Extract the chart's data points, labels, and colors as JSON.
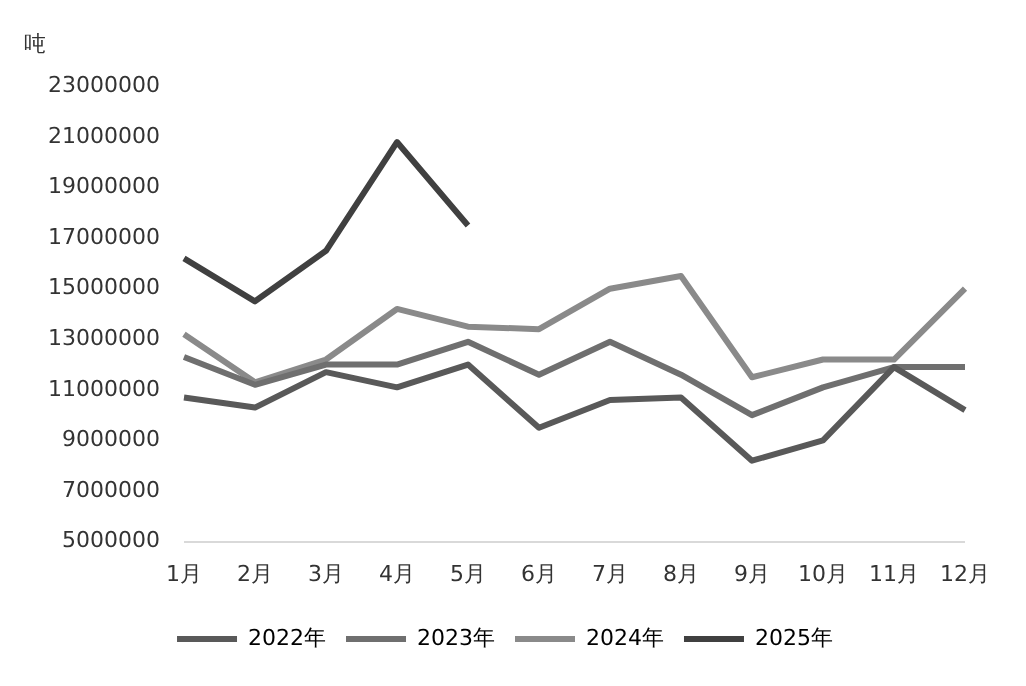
{
  "chart_data": {
    "type": "line",
    "ylabel": "吨",
    "categories": [
      "1月",
      "2月",
      "3月",
      "4月",
      "5月",
      "6月",
      "7月",
      "8月",
      "9月",
      "10月",
      "11月",
      "12月"
    ],
    "series": [
      {
        "name": "2022年",
        "color": "#595959",
        "values": [
          10700000,
          10300000,
          11700000,
          11100000,
          12000000,
          9500000,
          10600000,
          10700000,
          8200000,
          9000000,
          11900000,
          10200000
        ]
      },
      {
        "name": "2023年",
        "color": "#6f6f6f",
        "values": [
          12300000,
          11200000,
          12000000,
          12000000,
          12900000,
          11600000,
          12900000,
          11600000,
          10000000,
          11100000,
          11900000,
          11900000
        ]
      },
      {
        "name": "2024年",
        "color": "#8a8a8a",
        "values": [
          13200000,
          11300000,
          12200000,
          14200000,
          13500000,
          13400000,
          15000000,
          15500000,
          11500000,
          12200000,
          12200000,
          15000000
        ]
      },
      {
        "name": "2025年",
        "color": "#404040",
        "values": [
          16200000,
          14500000,
          16500000,
          20800000,
          17500000,
          null,
          null,
          null,
          null,
          null,
          null,
          null
        ]
      }
    ],
    "ylim": [
      5000000,
      23000000
    ],
    "yticks": [
      5000000,
      7000000,
      9000000,
      11000000,
      13000000,
      15000000,
      17000000,
      19000000,
      21000000,
      23000000
    ],
    "grid": false,
    "legend": "bottom",
    "marker": "none",
    "line_style": "solid"
  }
}
